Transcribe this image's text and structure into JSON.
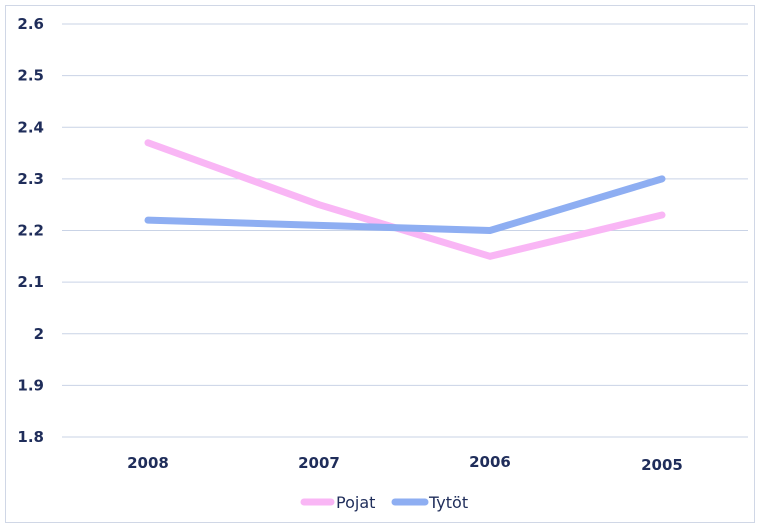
{
  "chart_data": {
    "type": "line",
    "categories": [
      "2008",
      "2007",
      "2006",
      "2005"
    ],
    "series": [
      {
        "name": "Pojat",
        "values": [
          2.37,
          2.25,
          2.15,
          2.23
        ],
        "color": "#f9b6f5"
      },
      {
        "name": "Tytöt",
        "values": [
          2.22,
          2.21,
          2.2,
          2.3
        ],
        "color": "#8eaef2"
      }
    ],
    "yticks": [
      "1.8",
      "1.9",
      "2",
      "2.1",
      "2.2",
      "2.3",
      "2.4",
      "2.5",
      "2.6"
    ],
    "ylim": [
      1.8,
      2.6
    ],
    "grid": true,
    "legend_position": "bottom",
    "title": "",
    "xlabel": "",
    "ylabel": ""
  }
}
